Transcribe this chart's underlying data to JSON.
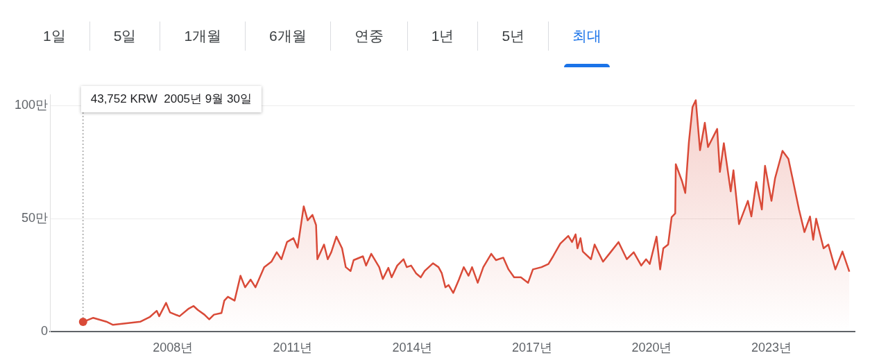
{
  "chart_data": {
    "type": "area",
    "annotations": [
      {
        "text": "43,752 KRW  2005년 9월 30일",
        "x": "2005-09-30",
        "y": 4.4
      },
      "1일",
      "5일",
      "1개월",
      "6개월",
      "연중",
      "1년",
      "5년",
      "최대"
    ],
    "x": [
      "2005-09-30",
      "2006-01-01",
      "2006-05-01",
      "2006-07-01",
      "2007-03-10",
      "2007-06-01",
      "2007-08-05",
      "2007-08-28",
      "2007-10-30",
      "2007-12-05",
      "2008-03-01",
      "2008-05-25",
      "2008-07-08",
      "2008-08-15",
      "2008-10-15",
      "2008-11-28",
      "2009-01-10",
      "2009-03-20",
      "2009-04-15",
      "2009-05-18",
      "2009-07-18",
      "2009-09-10",
      "2009-10-22",
      "2009-12-12",
      "2010-01-25",
      "2010-04-15",
      "2010-06-20",
      "2010-08-08",
      "2010-09-20",
      "2010-11-10",
      "2011-01-08",
      "2011-02-15",
      "2011-04-12",
      "2011-05-18",
      "2011-07-01",
      "2011-08-03",
      "2011-08-15",
      "2011-10-15",
      "2011-11-18",
      "2011-12-20",
      "2012-02-05",
      "2012-03-28",
      "2012-05-01",
      "2012-06-14",
      "2012-07-12",
      "2012-10-05",
      "2012-11-03",
      "2012-12-20",
      "2013-03-03",
      "2013-04-05",
      "2013-05-26",
      "2013-06-25",
      "2013-08-15",
      "2013-10-12",
      "2013-11-10",
      "2013-12-20",
      "2014-02-03",
      "2014-03-18",
      "2014-04-23",
      "2014-07-08",
      "2014-08-28",
      "2014-09-27",
      "2014-10-30",
      "2014-11-28",
      "2015-01-10",
      "2015-03-03",
      "2015-04-16",
      "2015-05-30",
      "2015-07-01",
      "2015-08-22",
      "2015-10-12",
      "2015-12-24",
      "2016-02-05",
      "2016-04-12",
      "2016-05-30",
      "2016-07-20",
      "2016-09-20",
      "2016-11-25",
      "2017-01-08",
      "2017-03-28",
      "2017-05-30",
      "2017-07-12",
      "2017-09-16",
      "2017-11-28",
      "2018-01-01",
      "2018-02-03",
      "2018-02-20",
      "2018-03-20",
      "2018-04-10",
      "2018-06-24",
      "2018-07-27",
      "2018-10-12",
      "2018-12-20",
      "2019-03-03",
      "2019-05-18",
      "2019-07-20",
      "2019-09-27",
      "2019-11-10",
      "2019-12-14",
      "2020-02-14",
      "2020-03-18",
      "2020-04-16",
      "2020-05-30",
      "2020-07-01",
      "2020-08-03",
      "2020-08-08",
      "2020-10-05",
      "2020-11-03",
      "2020-12-06",
      "2021-01-08",
      "2021-02-07",
      "2021-03-18",
      "2021-05-01",
      "2021-05-30",
      "2021-08-22",
      "2021-09-16",
      "2021-10-22",
      "2021-12-24",
      "2022-01-18",
      "2022-03-10",
      "2022-05-30",
      "2022-07-01",
      "2022-08-15",
      "2022-10-05",
      "2022-11-03",
      "2023-01-01",
      "2023-02-03",
      "2023-04-12",
      "2023-06-05",
      "2023-07-08",
      "2023-09-10",
      "2023-10-30",
      "2023-12-20",
      "2024-01-18",
      "2024-02-14",
      "2024-04-22",
      "2024-06-05",
      "2024-08-08",
      "2024-10-12",
      "2024-12-14"
    ],
    "series": [
      {
        "color": "#d94a38",
        "values": [
          4.4,
          6.2,
          4.5,
          3.1,
          4.5,
          6.5,
          9.3,
          6.9,
          12.8,
          8.6,
          6.9,
          10.3,
          11.4,
          9.7,
          7.6,
          5.5,
          7.6,
          8.3,
          13.8,
          15.5,
          13.8,
          24.8,
          19.7,
          23.1,
          19.7,
          28.6,
          31.0,
          35.2,
          32.1,
          39.7,
          41.4,
          37.2,
          55.5,
          49.3,
          51.7,
          47.2,
          32.1,
          38.6,
          32.1,
          35.2,
          42.1,
          36.9,
          28.6,
          26.9,
          31.7,
          33.4,
          29.3,
          34.5,
          28.6,
          23.4,
          28.3,
          24.1,
          29.3,
          32.1,
          28.6,
          29.3,
          25.9,
          24.1,
          26.9,
          30.3,
          28.6,
          25.9,
          19.7,
          20.7,
          17.2,
          23.1,
          28.6,
          24.8,
          28.6,
          21.7,
          28.6,
          34.5,
          31.7,
          32.8,
          27.6,
          24.1,
          24.1,
          21.7,
          27.6,
          28.6,
          30.0,
          33.4,
          39.0,
          42.4,
          39.7,
          43.1,
          36.9,
          41.4,
          35.5,
          32.1,
          38.6,
          31.0,
          35.2,
          39.7,
          32.1,
          35.2,
          29.3,
          32.1,
          30.0,
          42.1,
          27.6,
          36.9,
          38.6,
          50.7,
          52.4,
          74.1,
          66.5,
          61.4,
          83.8,
          99.3,
          102.4,
          80.3,
          92.4,
          81.7,
          89.7,
          70.7,
          83.4,
          62.1,
          71.4,
          47.6,
          57.9,
          51.0,
          66.2,
          54.1,
          73.4,
          57.9,
          67.9,
          80.0,
          76.5,
          69.0,
          54.1,
          44.1,
          51.0,
          40.7,
          50.0,
          36.9,
          38.6,
          27.6,
          35.5,
          26.6
        ]
      }
    ],
    "xlim": [
      "2004-12-01",
      "2025-02-01"
    ],
    "xticks": [
      {
        "value": "2008",
        "label": "2008년"
      },
      {
        "value": "2011",
        "label": "2011년"
      },
      {
        "value": "2014",
        "label": "2014년"
      },
      {
        "value": "2017",
        "label": "2017년"
      },
      {
        "value": "2020",
        "label": "2020년"
      },
      {
        "value": "2023",
        "label": "2023년"
      }
    ],
    "ylim": [
      0,
      105
    ],
    "yticks": [
      {
        "value": 0,
        "label": "0"
      },
      {
        "value": 50,
        "label": "50만"
      },
      {
        "value": 100,
        "label": "100만"
      }
    ],
    "grid": "y",
    "legend": false,
    "marker": "none",
    "line_style": "solid"
  }
}
